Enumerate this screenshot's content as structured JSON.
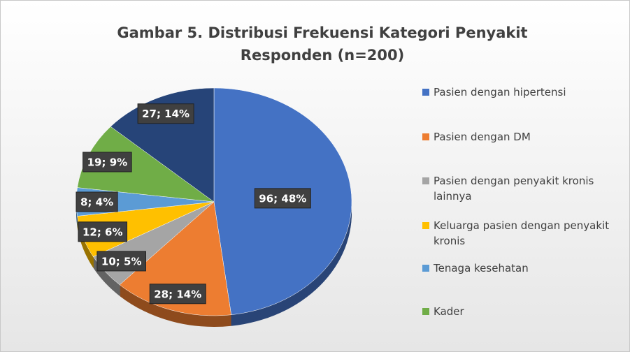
{
  "chart_data": {
    "type": "pie",
    "title": "Gambar 5. Distribusi Frekuensi Kategori Penyakit Responden (n=200)",
    "categories": [
      "Pasien dengan hipertensi",
      "Pasien dengan DM",
      "Pasien dengan penyakit kronis lainnya",
      "Keluarga pasien dengan penyakit kronis",
      "Tenaga kesehatan",
      "Kader",
      null
    ],
    "values": [
      96,
      28,
      10,
      12,
      8,
      19,
      27
    ],
    "value_labels": [
      "96; 48%",
      "28; 14%",
      "10; 5%",
      "12; 6%",
      "8; 4%",
      "19; 9%",
      "27; 14%"
    ],
    "colors": [
      "#4472c4",
      "#ed7d31",
      "#a5a5a5",
      "#ffc000",
      "#5b9bd5",
      "#70ad47",
      "#264478"
    ],
    "legend": "right"
  }
}
